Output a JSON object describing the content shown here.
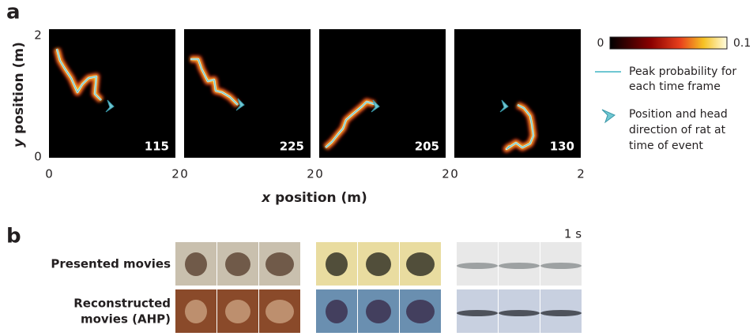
{
  "panel_a": {
    "label": "a",
    "y_axis_label": {
      "var": "y",
      "rest": "position (m)"
    },
    "x_axis_label": {
      "var": "x",
      "rest": "position (m)"
    },
    "y_ticks": [
      "0",
      "2"
    ],
    "plots": [
      {
        "x_ticks": [
          "0",
          "2"
        ],
        "count": "115"
      },
      {
        "x_ticks": [
          "0",
          "2"
        ],
        "count": "225"
      },
      {
        "x_ticks": [
          "0",
          "2"
        ],
        "count": "205"
      },
      {
        "x_ticks": [
          "0",
          "2"
        ],
        "count": "130"
      }
    ],
    "colorbar": {
      "min": "0",
      "max": "0.1"
    },
    "legend": [
      {
        "lines": [
          "Peak probability for",
          "each time frame"
        ]
      },
      {
        "lines": [
          "Position and head",
          "direction of rat at",
          "time of event"
        ]
      }
    ]
  },
  "panel_b": {
    "label": "b",
    "scale": "1 s",
    "rows": [
      {
        "lines": [
          "Presented movies"
        ]
      },
      {
        "lines": [
          "Reconstructed",
          "movies (AHP)"
        ]
      }
    ]
  }
}
